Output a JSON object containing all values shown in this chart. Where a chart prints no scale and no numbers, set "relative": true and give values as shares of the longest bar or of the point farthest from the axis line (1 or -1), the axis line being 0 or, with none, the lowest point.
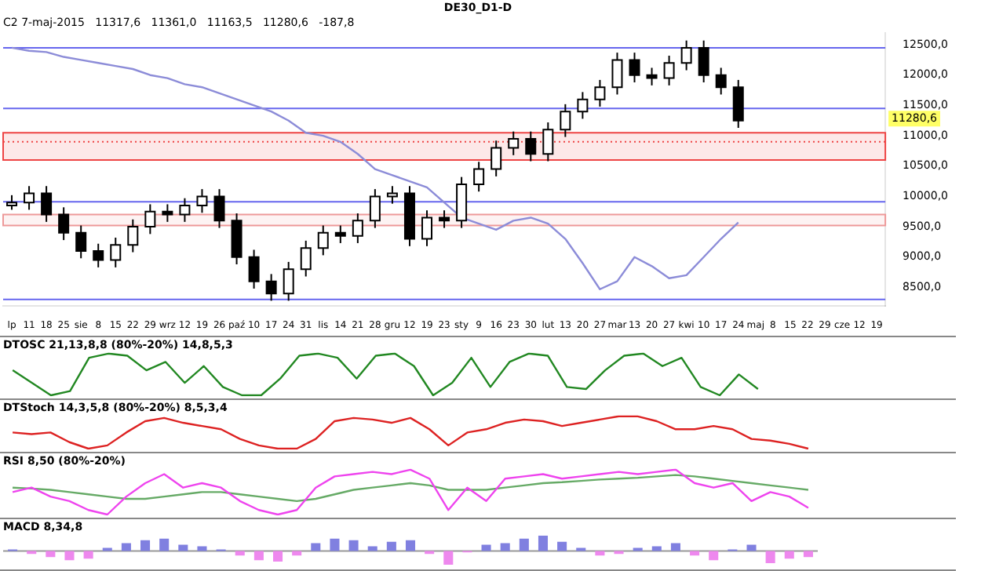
{
  "chart_data": [
    {
      "type": "candlestick",
      "title": "DE30_D1-D",
      "subtitle": "C2 7-maj-2015   11317,6   11361,0   11163,5   11280,6   -187,8",
      "categories": [
        "lp",
        "11",
        "18",
        "25",
        "sie",
        "8",
        "15",
        "22",
        "29",
        "wrz",
        "12",
        "19",
        "26",
        "paź",
        "10",
        "17",
        "24",
        "31",
        "lis",
        "14",
        "21",
        "28",
        "gru",
        "12",
        "19",
        "23",
        "sty",
        "9",
        "16",
        "23",
        "30",
        "lut",
        "13",
        "20",
        "27",
        "mar",
        "13",
        "20",
        "27",
        "kwi",
        "10",
        "17",
        "24",
        "maj",
        "8",
        "15",
        "22",
        "29",
        "cze",
        "12",
        "19"
      ],
      "ohlc": [
        [
          9850,
          10020,
          9780,
          9900
        ],
        [
          9900,
          10170,
          9780,
          10050
        ],
        [
          10050,
          10170,
          9580,
          9700
        ],
        [
          9700,
          9820,
          9280,
          9400
        ],
        [
          9400,
          9520,
          8980,
          9100
        ],
        [
          9100,
          9220,
          8830,
          8950
        ],
        [
          8950,
          9320,
          8830,
          9200
        ],
        [
          9200,
          9620,
          9080,
          9500
        ],
        [
          9500,
          9870,
          9380,
          9750
        ],
        [
          9750,
          9870,
          9580,
          9700
        ],
        [
          9700,
          9970,
          9580,
          9850
        ],
        [
          9850,
          10120,
          9730,
          10000
        ],
        [
          10000,
          10120,
          9480,
          9600
        ],
        [
          9600,
          9720,
          8880,
          9000
        ],
        [
          9000,
          9120,
          8480,
          8600
        ],
        [
          8600,
          8720,
          8280,
          8400
        ],
        [
          8400,
          8920,
          8280,
          8800
        ],
        [
          8800,
          9270,
          8680,
          9150
        ],
        [
          9150,
          9520,
          9030,
          9400
        ],
        [
          9400,
          9520,
          9230,
          9350
        ],
        [
          9350,
          9720,
          9230,
          9600
        ],
        [
          9600,
          10120,
          9480,
          10000
        ],
        [
          10000,
          10170,
          9880,
          10050
        ],
        [
          10050,
          10170,
          9180,
          9300
        ],
        [
          9300,
          9770,
          9180,
          9650
        ],
        [
          9650,
          9770,
          9480,
          9600
        ],
        [
          9600,
          10320,
          9480,
          10200
        ],
        [
          10200,
          10570,
          10080,
          10450
        ],
        [
          10450,
          10920,
          10330,
          10800
        ],
        [
          10800,
          11070,
          10680,
          10950
        ],
        [
          10950,
          11070,
          10580,
          10700
        ],
        [
          10700,
          11220,
          10580,
          11100
        ],
        [
          11100,
          11520,
          10980,
          11400
        ],
        [
          11400,
          11720,
          11280,
          11600
        ],
        [
          11600,
          11920,
          11480,
          11800
        ],
        [
          11800,
          12370,
          11680,
          12250
        ],
        [
          12250,
          12370,
          11880,
          12000
        ],
        [
          12000,
          12120,
          11830,
          11950
        ],
        [
          11950,
          12320,
          11830,
          12200
        ],
        [
          12200,
          12570,
          12080,
          12450
        ],
        [
          12450,
          12570,
          11880,
          12000
        ],
        [
          12000,
          12120,
          11680,
          11800
        ],
        [
          11800,
          11920,
          11130,
          11250
        ],
        null,
        null,
        null,
        null,
        null,
        null,
        null,
        null
      ],
      "series": [
        {
          "type": "line",
          "color": "#8c8cd8",
          "values": [
            12450,
            12400,
            12380,
            12300,
            12250,
            12200,
            12150,
            12100,
            12000,
            11950,
            11850,
            11800,
            11700,
            11600,
            11500,
            11400,
            11250,
            11050,
            11000,
            10900,
            10700,
            10450,
            10350,
            10250,
            10150,
            9900,
            9650,
            9550,
            9450,
            9600,
            9650,
            9550,
            9300,
            8900,
            8470,
            8600,
            9000,
            8850,
            8650,
            8700,
            9000,
            9300,
            9570,
            null,
            null,
            null,
            null,
            null,
            null,
            null,
            null
          ]
        }
      ],
      "ylim": [
        8200,
        12700
      ],
      "yticks": [
        {
          "value": 8500,
          "label": "8500,0"
        },
        {
          "value": 9000,
          "label": "9000,0"
        },
        {
          "value": 9500,
          "label": "9500,0"
        },
        {
          "value": 10000,
          "label": "10000,0"
        },
        {
          "value": 10500,
          "label": "10500,0"
        },
        {
          "value": 11000,
          "label": "11000,0"
        },
        {
          "value": 11500,
          "label": "11500,0"
        },
        {
          "value": 12000,
          "label": "12000,0"
        },
        {
          "value": 12500,
          "label": "12500,0"
        }
      ],
      "ref_lines": [
        {
          "axis": "y",
          "value": 12450,
          "color": "#6666ee"
        },
        {
          "axis": "y",
          "value": 11450,
          "color": "#6666ee"
        },
        {
          "axis": "y",
          "value": 10900,
          "color": "#ee4444",
          "line_style": "dotted"
        },
        {
          "axis": "y",
          "value": 9910,
          "color": "#6666ee"
        },
        {
          "axis": "y",
          "value": 8300,
          "color": "#6666ee"
        }
      ],
      "bands": [
        {
          "axis": "y",
          "from": 10600,
          "to": 11050,
          "color": "#ee4444"
        },
        {
          "axis": "y",
          "from": 9520,
          "to": 9700,
          "color": "#ee9999"
        }
      ],
      "annotations": [
        {
          "text": "11280,6",
          "y": 11280.6
        }
      ],
      "marker": "none",
      "grid": false
    },
    {
      "type": "line",
      "title": "DTOSC 21,13,8,8 (80%-20%) 14,8,5,3",
      "relative": true,
      "marker": "none",
      "categories": [
        null,
        null,
        null,
        null,
        null,
        null,
        null,
        null,
        null,
        null,
        null,
        null,
        null,
        null,
        null,
        null,
        null,
        null,
        null,
        null,
        null,
        null,
        null,
        null,
        null,
        null,
        null,
        null,
        null,
        null,
        null,
        null,
        null,
        null,
        null,
        null,
        null,
        null,
        null,
        null
      ],
      "series": [
        {
          "color": "#228822",
          "values": [
            0.6,
            0.3,
            0,
            0.1,
            0.9,
            1,
            0.95,
            0.6,
            0.8,
            0.3,
            0.7,
            0.2,
            0,
            0,
            0.4,
            0.95,
            1,
            0.9,
            0.4,
            0.95,
            1,
            0.7,
            0,
            0.3,
            0.9,
            0.2,
            0.8,
            1,
            0.95,
            0.2,
            0.15,
            0.6,
            0.95,
            1,
            0.7,
            0.9,
            0.2,
            0,
            0.5,
            0.15
          ]
        }
      ]
    },
    {
      "type": "line",
      "title": "DTStoch 14,3,5,8 (80%-20%) 8,5,3,4",
      "relative": true,
      "marker": "none",
      "categories": [
        null,
        null,
        null,
        null,
        null,
        null,
        null,
        null,
        null,
        null,
        null,
        null,
        null,
        null,
        null,
        null,
        null,
        null,
        null,
        null,
        null,
        null,
        null,
        null,
        null,
        null,
        null,
        null,
        null,
        null,
        null,
        null,
        null,
        null,
        null,
        null,
        null,
        null,
        null,
        null,
        null,
        null,
        null
      ],
      "series": [
        {
          "color": "#dd2222",
          "values": [
            0.5,
            0.45,
            0.5,
            0.2,
            0,
            0.1,
            0.5,
            0.85,
            0.95,
            0.8,
            0.7,
            0.6,
            0.3,
            0.1,
            0,
            0,
            0.3,
            0.85,
            0.95,
            0.9,
            0.8,
            0.95,
            0.6,
            0.1,
            0.5,
            0.6,
            0.8,
            0.9,
            0.85,
            0.7,
            0.8,
            0.9,
            1,
            1,
            0.85,
            0.6,
            0.6,
            0.7,
            0.6,
            0.3,
            0.25,
            0.15,
            0
          ]
        }
      ]
    },
    {
      "type": "line",
      "title": "RSI 8,50 (80%-20%)",
      "relative": true,
      "marker": "none",
      "categories": [
        null,
        null,
        null,
        null,
        null,
        null,
        null,
        null,
        null,
        null,
        null,
        null,
        null,
        null,
        null,
        null,
        null,
        null,
        null,
        null,
        null,
        null,
        null,
        null,
        null,
        null,
        null,
        null,
        null,
        null,
        null,
        null,
        null,
        null,
        null,
        null,
        null,
        null,
        null,
        null,
        null,
        null,
        null
      ],
      "series": [
        {
          "color": "#ee44ee",
          "values": [
            0.5,
            0.6,
            0.4,
            0.3,
            0.1,
            0,
            0.4,
            0.7,
            0.9,
            0.6,
            0.7,
            0.6,
            0.3,
            0.1,
            0,
            0.1,
            0.6,
            0.85,
            0.9,
            0.95,
            0.9,
            1,
            0.8,
            0.1,
            0.6,
            0.3,
            0.8,
            0.85,
            0.9,
            0.8,
            0.85,
            0.9,
            0.95,
            0.9,
            0.95,
            1,
            0.7,
            0.6,
            0.7,
            0.3,
            0.5,
            0.4,
            0.15
          ]
        },
        {
          "color": "#66aa66",
          "values": [
            0.6,
            0.58,
            0.55,
            0.5,
            0.45,
            0.4,
            0.35,
            0.35,
            0.4,
            0.45,
            0.5,
            0.5,
            0.45,
            0.4,
            0.35,
            0.3,
            0.35,
            0.45,
            0.55,
            0.6,
            0.65,
            0.7,
            0.65,
            0.55,
            0.55,
            0.55,
            0.6,
            0.65,
            0.7,
            0.72,
            0.75,
            0.78,
            0.8,
            0.82,
            0.85,
            0.88,
            0.85,
            0.8,
            0.75,
            0.7,
            0.65,
            0.6,
            0.55
          ]
        }
      ]
    },
    {
      "type": "bar",
      "title": "MACD 8,34,8",
      "relative": true,
      "categories": [
        null,
        null,
        null,
        null,
        null,
        null,
        null,
        null,
        null,
        null,
        null,
        null,
        null,
        null,
        null,
        null,
        null,
        null,
        null,
        null,
        null,
        null,
        null,
        null,
        null,
        null,
        null,
        null,
        null,
        null,
        null,
        null,
        null,
        null,
        null,
        null,
        null,
        null,
        null,
        null,
        null,
        null,
        null
      ],
      "values": [
        0.1,
        -0.2,
        -0.4,
        -0.6,
        -0.5,
        0.2,
        0.5,
        0.7,
        0.8,
        0.4,
        0.3,
        0.1,
        -0.3,
        -0.6,
        -0.7,
        -0.3,
        0.5,
        0.8,
        0.7,
        0.3,
        0.6,
        0.7,
        -0.2,
        -0.9,
        -0.1,
        0.4,
        0.5,
        0.8,
        1,
        0.6,
        0.2,
        -0.3,
        -0.2,
        0.2,
        0.3,
        0.5,
        -0.3,
        -0.6,
        0.1,
        0.4,
        -0.8,
        -0.5,
        -0.4
      ],
      "colors": [
        "#8080e0",
        "#ee88ee",
        "#ee88ee",
        "#ee88ee",
        "#ee88ee",
        "#8080e0",
        "#8080e0",
        "#8080e0",
        "#8080e0",
        "#8080e0",
        "#8080e0",
        "#8080e0",
        "#ee88ee",
        "#ee88ee",
        "#ee88ee",
        "#ee88ee",
        "#8080e0",
        "#8080e0",
        "#8080e0",
        "#8080e0",
        "#8080e0",
        "#8080e0",
        "#ee88ee",
        "#ee88ee",
        "#ee88ee",
        "#8080e0",
        "#8080e0",
        "#8080e0",
        "#8080e0",
        "#8080e0",
        "#8080e0",
        "#ee88ee",
        "#ee88ee",
        "#8080e0",
        "#8080e0",
        "#8080e0",
        "#ee88ee",
        "#ee88ee",
        "#8080e0",
        "#8080e0",
        "#ee88ee",
        "#ee88ee",
        "#ee88ee"
      ]
    }
  ]
}
